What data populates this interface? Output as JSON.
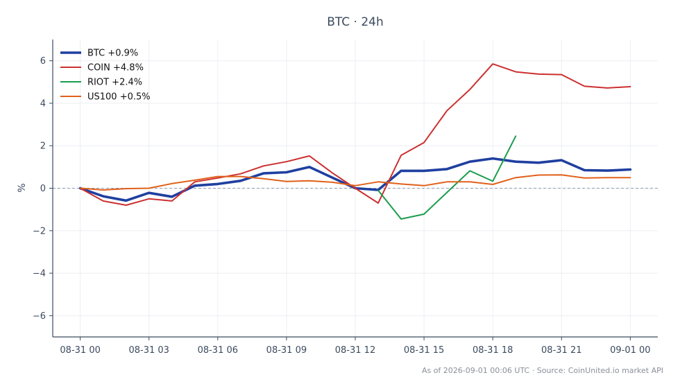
{
  "chart_data": {
    "type": "line",
    "title": "BTC · 24h",
    "xlabel": "",
    "ylabel": "%",
    "ylim": [
      -7,
      7
    ],
    "yticks": [
      -6,
      -4,
      -2,
      0,
      2,
      4,
      6
    ],
    "ytick_labels": [
      "−6",
      "−4",
      "−2",
      "0",
      "2",
      "4",
      "6"
    ],
    "xlim": [
      -1.2,
      25.2
    ],
    "xticks": [
      0,
      3,
      6,
      9,
      12,
      15,
      18,
      21,
      24
    ],
    "xtick_labels": [
      "08-31 00",
      "08-31 03",
      "08-31 06",
      "08-31 09",
      "08-31 12",
      "08-31 15",
      "08-31 18",
      "08-31 21",
      "09-01 00"
    ],
    "grid": true,
    "zero_line": true,
    "legend_position": "top-left",
    "footer": "As of 2026-09-01 00:06 UTC · Source: CoinUnited.io market API",
    "series": [
      {
        "name": "BTC +0.9%",
        "color": "#1f3fa0",
        "width": 3.6,
        "x": [
          0,
          1,
          2,
          3,
          4,
          5,
          6,
          7,
          8,
          9,
          10,
          11,
          12,
          13,
          14,
          15,
          16,
          17,
          18,
          19,
          20,
          21,
          22,
          23,
          24
        ],
        "values": [
          0.0,
          -0.38,
          -0.58,
          -0.22,
          -0.4,
          0.12,
          0.2,
          0.35,
          0.7,
          0.75,
          1.0,
          0.5,
          0.0,
          -0.08,
          0.82,
          0.82,
          0.9,
          1.25,
          1.4,
          1.25,
          1.2,
          1.32,
          0.85,
          0.83,
          0.88
        ]
      },
      {
        "name": "COIN +4.8%",
        "color": "#cc2f2f",
        "width": 2,
        "x": [
          0,
          1,
          2,
          3,
          4,
          5,
          6,
          7,
          8,
          9,
          10,
          11,
          12,
          13,
          14,
          15,
          16,
          17,
          18,
          19,
          20,
          21,
          22,
          23,
          24
        ],
        "values": [
          0.0,
          -0.6,
          -0.8,
          -0.5,
          -0.6,
          0.3,
          0.48,
          0.68,
          1.05,
          1.25,
          1.52,
          0.72,
          0.0,
          -0.7,
          1.55,
          2.15,
          3.65,
          4.65,
          5.85,
          5.48,
          5.37,
          5.35,
          4.8,
          4.72,
          4.78
        ]
      },
      {
        "name": "RIOT +2.4%",
        "color": "#1a9c4c",
        "width": 2,
        "x": [
          13,
          14,
          15,
          16,
          17,
          18,
          19
        ],
        "values": [
          -0.1,
          -1.45,
          -1.22,
          -0.2,
          0.82,
          0.33,
          2.45
        ]
      },
      {
        "name": "US100 +0.5%",
        "color": "#e0601a",
        "width": 2,
        "x": [
          0,
          1,
          2,
          3,
          4,
          5,
          6,
          7,
          8,
          9,
          10,
          11,
          12,
          13,
          14,
          15,
          16,
          17,
          18,
          19,
          20,
          21,
          22,
          23,
          24
        ],
        "values": [
          0.0,
          -0.08,
          -0.02,
          0.0,
          0.22,
          0.38,
          0.55,
          0.55,
          0.45,
          0.32,
          0.35,
          0.28,
          0.12,
          0.3,
          0.2,
          0.12,
          0.3,
          0.3,
          0.18,
          0.5,
          0.62,
          0.63,
          0.48,
          0.5,
          0.5
        ]
      }
    ]
  }
}
